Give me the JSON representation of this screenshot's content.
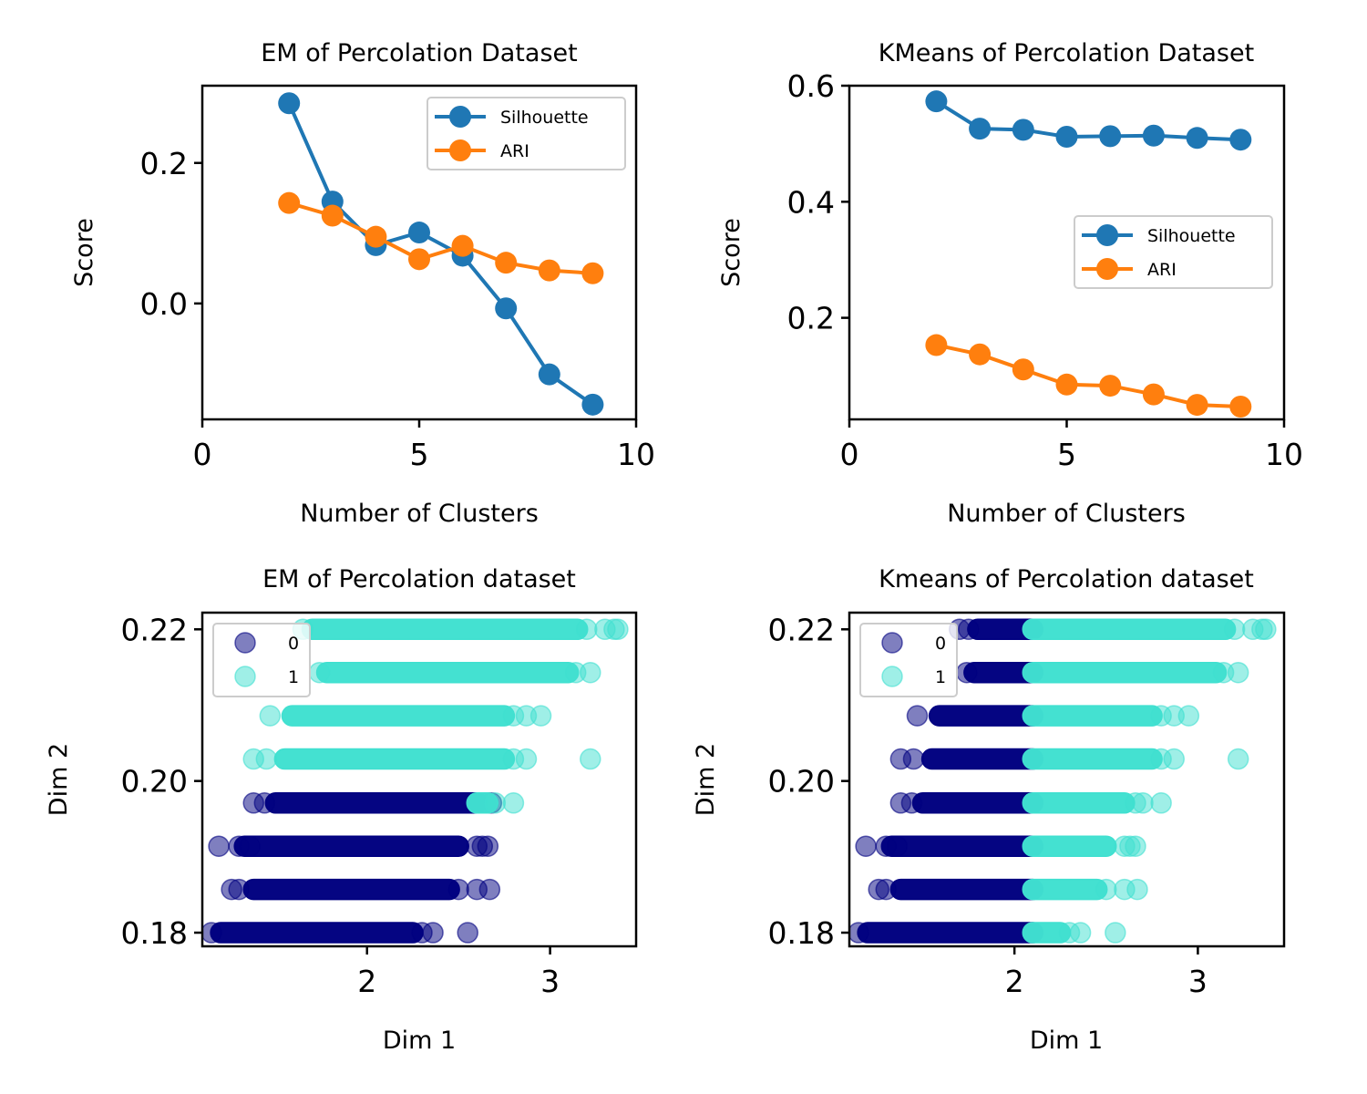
{
  "chart_data": [
    {
      "type": "line",
      "title": "EM of Percolation Dataset",
      "xlabel": "Number of Clusters",
      "ylabel": "Score",
      "xlim": [
        0,
        10
      ],
      "ylim": [
        -0.165,
        0.31
      ],
      "xticks": [
        0,
        5,
        10
      ],
      "xtick_labels": [
        "0",
        "5",
        "10"
      ],
      "yticks": [
        0.2,
        0.0
      ],
      "ytick_labels": [
        "0.2",
        "0.0"
      ],
      "legend_position": "top-right",
      "x": [
        2,
        3,
        4,
        5,
        6,
        7,
        8,
        9
      ],
      "series": [
        {
          "name": "Silhouette",
          "color": "#1f77b4",
          "values": [
            0.285,
            0.145,
            0.083,
            0.101,
            0.068,
            -0.007,
            -0.101,
            -0.144
          ]
        },
        {
          "name": "ARI",
          "color": "#ff7f0e",
          "values": [
            0.143,
            0.125,
            0.095,
            0.063,
            0.082,
            0.058,
            0.047,
            0.043
          ]
        }
      ]
    },
    {
      "type": "line",
      "title": "KMeans of Percolation Dataset",
      "xlabel": "Number of Clusters",
      "ylabel": "Score",
      "xlim": [
        0,
        10
      ],
      "ylim": [
        0.025,
        0.6
      ],
      "xticks": [
        0,
        5,
        10
      ],
      "xtick_labels": [
        "0",
        "5",
        "10"
      ],
      "yticks": [
        0.6,
        0.4,
        0.2
      ],
      "ytick_labels": [
        "0.6",
        "0.4",
        "0.2"
      ],
      "legend_position": "center-right",
      "x": [
        2,
        3,
        4,
        5,
        6,
        7,
        8,
        9
      ],
      "series": [
        {
          "name": "Silhouette",
          "color": "#1f77b4",
          "values": [
            0.573,
            0.526,
            0.524,
            0.512,
            0.513,
            0.514,
            0.51,
            0.507
          ]
        },
        {
          "name": "ARI",
          "color": "#ff7f0e",
          "values": [
            0.153,
            0.137,
            0.111,
            0.085,
            0.083,
            0.068,
            0.05,
            0.047
          ]
        }
      ]
    },
    {
      "type": "scatter",
      "title": "EM of Percolation dataset",
      "xlabel": "Dim 1",
      "ylabel": "Dim 2",
      "xlim": [
        1.1,
        3.47
      ],
      "ylim": [
        0.1782,
        0.2222
      ],
      "xticks": [
        2,
        3
      ],
      "xtick_labels": [
        "2",
        "3"
      ],
      "yticks": [
        0.22,
        0.2,
        0.18
      ],
      "ytick_labels": [
        "0.22",
        "0.20",
        "0.18"
      ],
      "legend_position": "top-left",
      "series": [
        {
          "name": "0",
          "color": "#000080",
          "rows": [
            {
              "y": 0.1971,
              "dense": [
                1.5,
                2.6
              ],
              "outliers": [
                1.38,
                1.44,
                2.66,
                2.68
              ]
            },
            {
              "y": 0.1914,
              "dense": [
                1.33,
                2.5
              ],
              "outliers": [
                1.19,
                1.3,
                1.36,
                2.6,
                2.63,
                2.66
              ]
            },
            {
              "y": 0.1857,
              "dense": [
                1.38,
                2.45
              ],
              "outliers": [
                1.26,
                1.3,
                2.5,
                2.6,
                2.67
              ]
            },
            {
              "y": 0.18,
              "dense": [
                1.2,
                2.25
              ],
              "outliers": [
                1.15,
                2.3,
                2.36,
                2.55
              ]
            }
          ]
        },
        {
          "name": "1",
          "color": "#40e0d0",
          "rows": [
            {
              "y": 0.22,
              "dense": [
                1.7,
                3.15
              ],
              "outliers": [
                1.65,
                3.2,
                3.3,
                3.35,
                3.37
              ]
            },
            {
              "y": 0.2143,
              "dense": [
                1.78,
                3.1
              ],
              "outliers": [
                1.74,
                3.14,
                3.22
              ]
            },
            {
              "y": 0.2086,
              "dense": [
                1.59,
                2.75
              ],
              "outliers": [
                1.47,
                2.8,
                2.87,
                2.95
              ]
            },
            {
              "y": 0.2029,
              "dense": [
                1.55,
                2.75
              ],
              "outliers": [
                1.38,
                1.45,
                2.8,
                2.87,
                3.22
              ]
            },
            {
              "y": 0.1971,
              "dense": [
                2.6,
                2.66
              ],
              "outliers": [
                2.7,
                2.8
              ]
            }
          ]
        }
      ]
    },
    {
      "type": "scatter",
      "title": "Kmeans of Percolation dataset",
      "xlabel": "Dim 1",
      "ylabel": "Dim 2",
      "xlim": [
        1.1,
        3.47
      ],
      "ylim": [
        0.1782,
        0.2222
      ],
      "xticks": [
        2,
        3
      ],
      "xtick_labels": [
        "2",
        "3"
      ],
      "yticks": [
        0.22,
        0.2,
        0.18
      ],
      "ytick_labels": [
        "0.22",
        "0.20",
        "0.18"
      ],
      "legend_position": "top-left",
      "series": [
        {
          "name": "0",
          "color": "#000080",
          "rows": [
            {
              "y": 0.22,
              "dense": [
                1.8,
                2.1
              ],
              "outliers": [
                1.7,
                1.75
              ]
            },
            {
              "y": 0.2143,
              "dense": [
                1.78,
                2.1
              ],
              "outliers": [
                1.74
              ]
            },
            {
              "y": 0.2086,
              "dense": [
                1.59,
                2.1
              ],
              "outliers": [
                1.47
              ]
            },
            {
              "y": 0.2029,
              "dense": [
                1.55,
                2.1
              ],
              "outliers": [
                1.38,
                1.45
              ]
            },
            {
              "y": 0.1971,
              "dense": [
                1.5,
                2.1
              ],
              "outliers": [
                1.38,
                1.44
              ]
            },
            {
              "y": 0.1914,
              "dense": [
                1.33,
                2.1
              ],
              "outliers": [
                1.19,
                1.3,
                1.36
              ]
            },
            {
              "y": 0.1857,
              "dense": [
                1.38,
                2.1
              ],
              "outliers": [
                1.26,
                1.3
              ]
            },
            {
              "y": 0.18,
              "dense": [
                1.2,
                2.1
              ],
              "outliers": [
                1.15
              ]
            }
          ]
        },
        {
          "name": "1",
          "color": "#40e0d0",
          "rows": [
            {
              "y": 0.22,
              "dense": [
                2.1,
                3.15
              ],
              "outliers": [
                3.2,
                3.3,
                3.35,
                3.37
              ]
            },
            {
              "y": 0.2143,
              "dense": [
                2.1,
                3.1
              ],
              "outliers": [
                3.14,
                3.22
              ]
            },
            {
              "y": 0.2086,
              "dense": [
                2.1,
                2.75
              ],
              "outliers": [
                2.8,
                2.87,
                2.95
              ]
            },
            {
              "y": 0.2029,
              "dense": [
                2.1,
                2.75
              ],
              "outliers": [
                2.8,
                2.87,
                3.22
              ]
            },
            {
              "y": 0.1971,
              "dense": [
                2.1,
                2.6
              ],
              "outliers": [
                2.66,
                2.7,
                2.8
              ]
            },
            {
              "y": 0.1914,
              "dense": [
                2.1,
                2.5
              ],
              "outliers": [
                2.6,
                2.63,
                2.66
              ]
            },
            {
              "y": 0.1857,
              "dense": [
                2.1,
                2.45
              ],
              "outliers": [
                2.5,
                2.6,
                2.67
              ]
            },
            {
              "y": 0.18,
              "dense": [
                2.1,
                2.25
              ],
              "outliers": [
                2.3,
                2.36,
                2.55
              ]
            }
          ]
        }
      ]
    }
  ]
}
